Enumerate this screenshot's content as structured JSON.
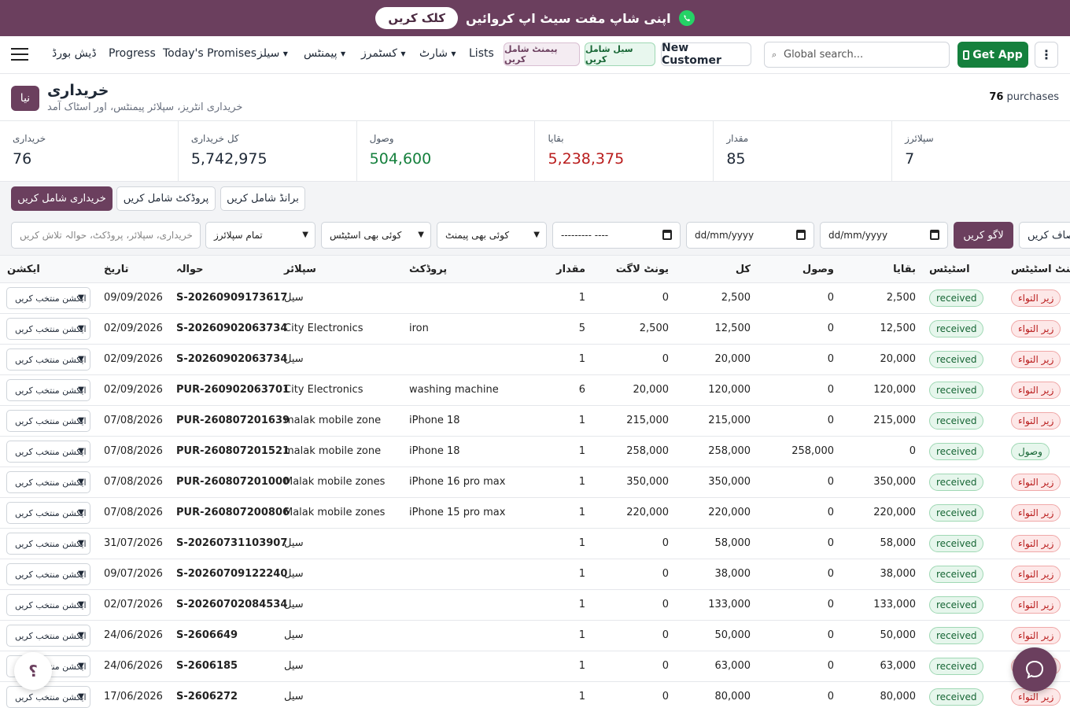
{
  "banner": {
    "button_label": "کلک کریں",
    "text": "اپنی شاپ مفت سیٹ اپ کروائیں"
  },
  "nav": {
    "dashboard": "ڈیش بورڈ",
    "progress": "Progress",
    "todays_promises": "Today's Promises",
    "sales": "سیلز",
    "payments": "پیمنٹس",
    "customers": "کسٹمرز",
    "shart": "شارٹ",
    "lists": "Lists",
    "add_payment": "پیمنٹ شامل کریں",
    "add_sale": "سیل شامل کریں",
    "new_customer": "New Customer",
    "search_placeholder": "Global search...",
    "get_app": "Get App"
  },
  "header": {
    "new_label": "نیا",
    "title": "خریداری",
    "subtitle": "خریداری انٹریز، سپلائر پیمنٹس، اور اسٹاک آمد",
    "count_number": "76",
    "count_suffix": " purchases"
  },
  "stats": [
    {
      "label": "خریداری",
      "value": "76",
      "tone": ""
    },
    {
      "label": "کل خریداری",
      "value": "5,742,975",
      "tone": ""
    },
    {
      "label": "وصول",
      "value": "504,600",
      "tone": "green"
    },
    {
      "label": "بقایا",
      "value": "5,238,375",
      "tone": "red"
    },
    {
      "label": "مقدار",
      "value": "85",
      "tone": ""
    },
    {
      "label": "سپلائرز",
      "value": "7",
      "tone": ""
    }
  ],
  "actions": {
    "add_purchase": "خریداری شامل کریں",
    "add_product": "پروڈکٹ شامل کریں",
    "add_brand": "برانڈ شامل کریں"
  },
  "filters": {
    "search_placeholder": "خریداری، سپلائر، پروڈکٹ، حوالہ تلاش کریں",
    "supplier": "تمام سپلائرز",
    "status": "کوئی بھی اسٹیٹس",
    "payment": "کوئی بھی پیمنٹ",
    "month": "--------- ----",
    "date_from": "dd/mm/yyyy",
    "date_to": "dd/mm/yyyy",
    "apply": "لاگو کریں",
    "clear": "صاف کریں"
  },
  "table": {
    "headers": {
      "action": "ایکشن",
      "date": "تاریخ",
      "ref": "حوالہ",
      "supplier": "سپلائر",
      "product": "پروڈکٹ",
      "qty": "مقدار",
      "unit_cost": "یونٹ لاگت",
      "total": "کل",
      "received": "وصول",
      "balance": "بقایا",
      "status": "اسٹیٹس",
      "payment_status": "پیمنٹ اسٹیٹس"
    },
    "action_select": "ایکشن منتخب کریں",
    "rows": [
      {
        "date": "09/09/2026",
        "ref": "S-20260909173617",
        "supplier": "سیل",
        "product": "",
        "qty": "1",
        "unit_cost": "0",
        "total": "2,500",
        "received": "0",
        "balance": "2,500",
        "status": "received",
        "payment": "زیر التواء",
        "paid": false
      },
      {
        "date": "02/09/2026",
        "ref": "S-20260902063734",
        "supplier": "City Electronics",
        "product": "iron",
        "qty": "5",
        "unit_cost": "2,500",
        "total": "12,500",
        "received": "0",
        "balance": "12,500",
        "status": "received",
        "payment": "زیر التواء",
        "paid": false
      },
      {
        "date": "02/09/2026",
        "ref": "S-20260902063734",
        "supplier": "سیل",
        "product": "",
        "qty": "1",
        "unit_cost": "0",
        "total": "20,000",
        "received": "0",
        "balance": "20,000",
        "status": "received",
        "payment": "زیر التواء",
        "paid": false
      },
      {
        "date": "02/09/2026",
        "ref": "PUR-260902063701",
        "supplier": "City Electronics",
        "product": "washing machine",
        "qty": "6",
        "unit_cost": "20,000",
        "total": "120,000",
        "received": "0",
        "balance": "120,000",
        "status": "received",
        "payment": "زیر التواء",
        "paid": false
      },
      {
        "date": "07/08/2026",
        "ref": "PUR-260807201639",
        "supplier": "malak mobile zone",
        "product": "iPhone 18",
        "qty": "1",
        "unit_cost": "215,000",
        "total": "215,000",
        "received": "0",
        "balance": "215,000",
        "status": "received",
        "payment": "زیر التواء",
        "paid": false
      },
      {
        "date": "07/08/2026",
        "ref": "PUR-260807201521",
        "supplier": "malak mobile zone",
        "product": "iPhone 18",
        "qty": "1",
        "unit_cost": "258,000",
        "total": "258,000",
        "received": "258,000",
        "balance": "0",
        "status": "received",
        "payment": "وصول",
        "paid": true
      },
      {
        "date": "07/08/2026",
        "ref": "PUR-260807201000",
        "supplier": "Malak mobile zones",
        "product": "iPhone 16 pro max",
        "qty": "1",
        "unit_cost": "350,000",
        "total": "350,000",
        "received": "0",
        "balance": "350,000",
        "status": "received",
        "payment": "زیر التواء",
        "paid": false
      },
      {
        "date": "07/08/2026",
        "ref": "PUR-260807200806",
        "supplier": "Malak mobile zones",
        "product": "iPhone 15 pro max",
        "qty": "1",
        "unit_cost": "220,000",
        "total": "220,000",
        "received": "0",
        "balance": "220,000",
        "status": "received",
        "payment": "زیر التواء",
        "paid": false
      },
      {
        "date": "31/07/2026",
        "ref": "S-20260731103907",
        "supplier": "سیل",
        "product": "",
        "qty": "1",
        "unit_cost": "0",
        "total": "58,000",
        "received": "0",
        "balance": "58,000",
        "status": "received",
        "payment": "زیر التواء",
        "paid": false
      },
      {
        "date": "09/07/2026",
        "ref": "S-20260709122240",
        "supplier": "سیل",
        "product": "",
        "qty": "1",
        "unit_cost": "0",
        "total": "38,000",
        "received": "0",
        "balance": "38,000",
        "status": "received",
        "payment": "زیر التواء",
        "paid": false
      },
      {
        "date": "02/07/2026",
        "ref": "S-20260702084534",
        "supplier": "سیل",
        "product": "",
        "qty": "1",
        "unit_cost": "0",
        "total": "133,000",
        "received": "0",
        "balance": "133,000",
        "status": "received",
        "payment": "زیر التواء",
        "paid": false
      },
      {
        "date": "24/06/2026",
        "ref": "S-2606649",
        "supplier": "سیل",
        "product": "",
        "qty": "1",
        "unit_cost": "0",
        "total": "50,000",
        "received": "0",
        "balance": "50,000",
        "status": "received",
        "payment": "زیر التواء",
        "paid": false
      },
      {
        "date": "24/06/2026",
        "ref": "S-2606185",
        "supplier": "سیل",
        "product": "",
        "qty": "1",
        "unit_cost": "0",
        "total": "63,000",
        "received": "0",
        "balance": "63,000",
        "status": "received",
        "payment": "زیر التواء",
        "paid": false
      },
      {
        "date": "17/06/2026",
        "ref": "S-2606272",
        "supplier": "سیل",
        "product": "",
        "qty": "1",
        "unit_cost": "0",
        "total": "80,000",
        "received": "0",
        "balance": "80,000",
        "status": "received",
        "payment": "زیر التواء",
        "paid": false
      }
    ]
  },
  "floating": {
    "help_glyph": "؟"
  },
  "colors": {
    "brand": "#6b3f5e",
    "success": "#15803d",
    "danger": "#b91c1c"
  }
}
